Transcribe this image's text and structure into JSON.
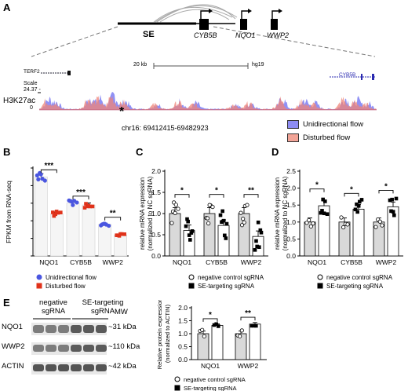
{
  "panel_labels": [
    "A",
    "B",
    "C",
    "D",
    "E"
  ],
  "colors": {
    "unidirectional": "#4a56e0",
    "disturbed": "#e0321a",
    "track_blue": "#6b6cf2",
    "track_red": "#ef8478",
    "legend_blue": "#8d8cf2",
    "legend_red": "#f2a497",
    "bar_grey": "#d9d9d9",
    "loop": "#a9a9a9",
    "blot_band": "#3a3a3a",
    "blot_bg": "#e8e8e8"
  },
  "panel_a": {
    "gene_labels": [
      "SE",
      "CYB5B",
      "NQO1",
      "WWP2"
    ],
    "browser": {
      "scale_text": "20 kb",
      "genome": "hg19",
      "gene_left": "TERF2",
      "gene_right": "CYB5B",
      "scale_label": "Scale",
      "scale_value": "24.37 -",
      "track_label": "H3K27ac",
      "zero_label": "0"
    },
    "asterisk": "*",
    "coords": "chr16: 69412415-69482923",
    "legend": [
      {
        "label": "Unidirectional flow",
        "color": "#8d8cf2"
      },
      {
        "label": "Disturbed flow",
        "color": "#f2a497"
      }
    ]
  },
  "chart_data": [
    {
      "panel": "B",
      "type": "bar",
      "categories": [
        "NQO1",
        "CYB5B",
        "WWP2"
      ],
      "ylabel": "FPKM from RNA-seq",
      "series": [
        {
          "name": "Unidirectional flow",
          "values": [
            45,
            30,
            18
          ]
        },
        {
          "name": "Disturbed flow",
          "values": [
            24,
            29,
            12
          ]
        }
      ],
      "significance": [
        "***",
        "***",
        "**"
      ],
      "legend_position": "bottom"
    },
    {
      "panel": "C",
      "type": "bar",
      "categories": [
        "NQO1",
        "CYB5B",
        "WWP2"
      ],
      "ylabel": "relative mRNA expression (normalized to NC sgRNA)",
      "ylim": [
        0,
        2.0
      ],
      "yticks": [
        "0.0",
        "0.5",
        "1.0",
        "1.5",
        "2.0"
      ],
      "series": [
        {
          "name": "negative control sgRNA",
          "values": [
            1.0,
            1.0,
            1.0
          ]
        },
        {
          "name": "SE-targeting sgRNA",
          "values": [
            0.6,
            0.72,
            0.46
          ]
        }
      ],
      "significance": [
        "*",
        "*",
        "**"
      ],
      "legend_position": "bottom"
    },
    {
      "panel": "D",
      "type": "bar",
      "categories": [
        "NQO1",
        "CYB5B",
        "WWP2"
      ],
      "ylabel": "relative mRNA expression (normalized to NC sgRNA)",
      "ylim": [
        0,
        2.5
      ],
      "yticks": [
        "0.0",
        "0.5",
        "1.0",
        "1.5",
        "2.0",
        "2.5"
      ],
      "series": [
        {
          "name": "negative control sgRNA",
          "values": [
            1.0,
            1.0,
            1.0
          ]
        },
        {
          "name": "SE-targeting sgRNA",
          "values": [
            1.48,
            1.38,
            1.45
          ]
        }
      ],
      "significance": [
        "*",
        "*",
        "*"
      ],
      "legend_position": "bottom"
    },
    {
      "panel": "E",
      "type": "bar",
      "categories": [
        "NQO1",
        "WWP2"
      ],
      "ylabel": "Relative protein expression (normalized to ACTIN)",
      "ylim": [
        0,
        2.0
      ],
      "yticks": [
        "0.0",
        "0.5",
        "1.0",
        "1.5",
        "2.0"
      ],
      "series": [
        {
          "name": "negative control sgRNA",
          "values": [
            1.0,
            1.0
          ]
        },
        {
          "name": "SE-targeting sgRNA",
          "values": [
            1.32,
            1.37
          ]
        }
      ],
      "significance": [
        "*",
        "**"
      ],
      "legend_position": "bottom"
    }
  ],
  "panel_e_blot": {
    "header_left": "negative sgRNA",
    "header_right": "SE-targeting sgRNA",
    "mw_label": "MW",
    "rows": [
      {
        "protein": "NQO1",
        "mw": "~31 kDa"
      },
      {
        "protein": "WWP2",
        "mw": "~110 kDa"
      },
      {
        "protein": "ACTIN",
        "mw": "~42 kDa"
      }
    ]
  }
}
